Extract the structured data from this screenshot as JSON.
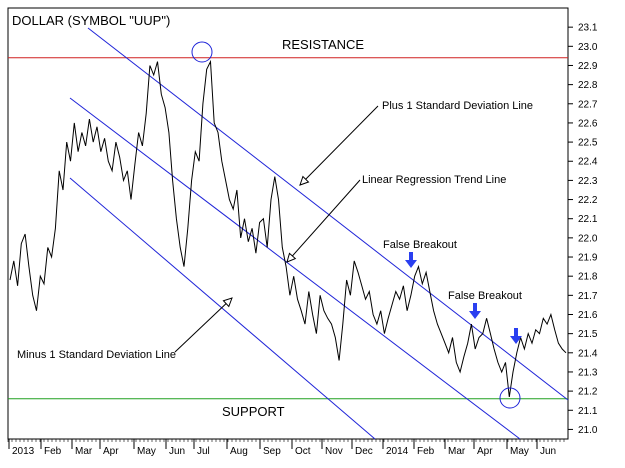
{
  "chart_data": {
    "type": "line",
    "title": "DOLLAR (SYMBOL \"UUP\")",
    "x_ticks": [
      "2013",
      "Feb",
      "Mar",
      "Apr",
      "May",
      "Jun",
      "Jul",
      "Aug",
      "Sep",
      "Oct",
      "Nov",
      "Dec",
      "2014",
      "Feb",
      "Mar",
      "Apr",
      "May",
      "Jun"
    ],
    "ylim": [
      20.95,
      23.2
    ],
    "y_ticks": [
      21.0,
      21.1,
      21.2,
      21.3,
      21.4,
      21.5,
      21.6,
      21.7,
      21.8,
      21.9,
      22.0,
      22.1,
      22.2,
      22.3,
      22.4,
      22.5,
      22.6,
      22.7,
      22.8,
      22.9,
      23.0,
      23.1
    ],
    "grid": false,
    "series": [
      {
        "values": [
          21.78,
          21.88,
          21.75,
          21.97,
          22.02,
          21.85,
          21.7,
          21.62,
          21.8,
          21.76,
          21.95,
          21.9,
          22.05,
          22.35,
          22.25,
          22.5,
          22.4,
          22.6,
          22.45,
          22.55,
          22.48,
          22.62,
          22.5,
          22.58,
          22.45,
          22.52,
          22.4,
          22.35,
          22.5,
          22.42,
          22.3,
          22.35,
          22.2,
          22.38,
          22.55,
          22.48,
          22.65,
          22.9,
          22.85,
          22.92,
          22.75,
          22.68,
          22.55,
          22.3,
          22.1,
          21.95,
          21.85,
          22.05,
          22.3,
          22.45,
          22.4,
          22.7,
          22.88,
          22.92,
          22.6,
          22.55,
          22.4,
          22.3,
          22.2,
          22.15,
          22.25,
          22.0,
          22.1,
          21.98,
          22.05,
          21.92,
          22.08,
          22.1,
          21.95,
          22.2,
          22.32,
          22.2,
          21.95,
          21.85,
          21.7,
          21.8,
          21.68,
          21.62,
          21.55,
          21.72,
          21.6,
          21.5,
          21.7,
          21.62,
          21.58,
          21.55,
          21.48,
          21.36,
          21.55,
          21.78,
          21.7,
          21.88,
          21.82,
          21.75,
          21.68,
          21.72,
          21.6,
          21.55,
          21.62,
          21.5,
          21.58,
          21.65,
          21.72,
          21.68,
          21.75,
          21.62,
          21.7,
          21.8,
          21.85,
          21.76,
          21.82,
          21.72,
          21.62,
          21.55,
          21.5,
          21.45,
          21.4,
          21.48,
          21.35,
          21.3,
          21.38,
          21.45,
          21.55,
          21.42,
          21.48,
          21.5,
          21.58,
          21.5,
          21.42,
          21.35,
          21.3,
          21.35,
          21.17,
          21.3,
          21.4,
          21.48,
          21.42,
          21.5,
          21.45,
          21.52,
          21.5,
          21.58,
          21.55,
          21.6,
          21.52,
          21.45,
          21.42,
          21.4
        ],
        "color": "#000000"
      }
    ],
    "resistance_level": 22.94,
    "support_level": 21.16,
    "resistance_label": "RESISTANCE",
    "support_label": "SUPPORT",
    "resistance_color": "#d02020",
    "support_color": "#20a020",
    "channel_color": "#1f24d8",
    "arrow_color": "#2a3ff0",
    "annotations": {
      "plus_sd": "Plus 1 Standard Deviation Line",
      "regression": "Linear Regression Trend Line",
      "minus_sd": "Minus 1 Standard Deviation Line",
      "false_breakout": "False Breakout"
    }
  }
}
